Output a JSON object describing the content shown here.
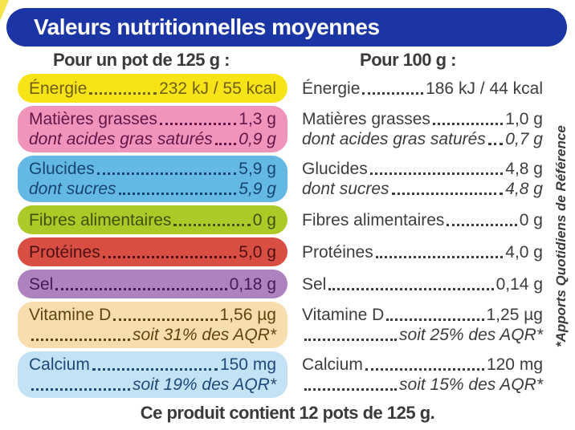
{
  "header": {
    "title": "Valeurs nutritionnelles moyennes",
    "bg_color": "#1b35a5",
    "text_color": "#ffffff"
  },
  "columns": {
    "left_header": "Pour un pot de 125 g :",
    "right_header": "Pour 100 g :"
  },
  "rows": [
    {
      "label": "Énergie",
      "bg": "#f7e417",
      "fg": "#6f5f15",
      "left": {
        "value": "232 kJ / 55 kcal"
      },
      "right": {
        "value": "186 kJ / 44 kcal"
      }
    },
    {
      "label": "Matières grasses",
      "sublabel": "dont acides gras saturés",
      "bg": "#f094bb",
      "fg": "#63164a",
      "left": {
        "value": "1,3 g",
        "subvalue": "0,9 g"
      },
      "right": {
        "value": "1,0 g",
        "subvalue": "0,7 g"
      }
    },
    {
      "label": "Glucides",
      "sublabel": "dont sucres",
      "bg": "#64b9e4",
      "fg": "#174470",
      "left": {
        "value": "5,9 g",
        "subvalue": "5,9 g"
      },
      "right": {
        "value": "4,8 g",
        "subvalue": "4,8 g"
      }
    },
    {
      "label": "Fibres alimentaires",
      "bg": "#abc927",
      "fg": "#40510d",
      "left": {
        "value": "0 g"
      },
      "right": {
        "value": "0 g"
      }
    },
    {
      "label": "Protéines",
      "bg": "#d84e43",
      "fg": "#4f1015",
      "left": {
        "value": "5,0 g"
      },
      "right": {
        "value": "4,0 g"
      }
    },
    {
      "label": "Sel",
      "bg": "#ad82bf",
      "fg": "#441a57",
      "left": {
        "value": "0,18 g"
      },
      "right": {
        "value": "0,14 g"
      }
    },
    {
      "label": "Vitamine D",
      "bg": "#f8ddae",
      "fg": "#5f4512",
      "left": {
        "value": "1,56 µg",
        "note": "soit 31% des AQR*"
      },
      "right": {
        "value": "1,25 µg",
        "note": "soit 25% des AQR*"
      }
    },
    {
      "label": "Calcium",
      "bg": "#c3e2f6",
      "fg": "#1d4a78",
      "left": {
        "value": "150 mg",
        "note": "soit 19% des AQR*"
      },
      "right": {
        "value": "120 mg",
        "note": "soit 15% des AQR*"
      }
    }
  ],
  "footnotes": {
    "aqr": "*Apports Quotidiens de Référence"
  },
  "bottom_note": "Ce produit contient 12 pots de 125 g."
}
